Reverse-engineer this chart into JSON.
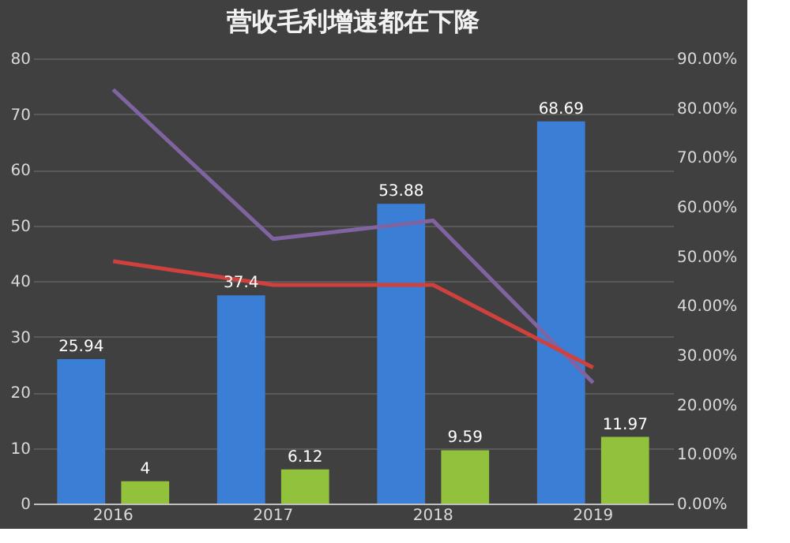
{
  "chart_data": {
    "type": "bar",
    "title": "营收毛利增速都在下降",
    "categories": [
      "2016",
      "2017",
      "2018",
      "2019"
    ],
    "series": [
      {
        "color": "#3a7fd5",
        "values": [
          25.94,
          37.4,
          53.88,
          68.69
        ],
        "value_labels": [
          "25.94",
          "37.4",
          "53.88",
          "68.69"
        ]
      },
      {
        "color": "#92c13c",
        "values": [
          4,
          6.12,
          9.59,
          11.97
        ],
        "value_labels": [
          "4",
          "6.12",
          "9.59",
          "11.97"
        ]
      },
      {
        "type": "line",
        "axis": "y2",
        "color": "#8064a2",
        "values": [
          83.7,
          53.5,
          57.2,
          24.4
        ]
      },
      {
        "type": "line",
        "axis": "y2",
        "color": "#d0413e",
        "values": [
          49.0,
          44.2,
          44.2,
          27.5
        ]
      }
    ],
    "ylim": [
      0,
      80
    ],
    "yticks": [
      0,
      10,
      20,
      30,
      40,
      50,
      60,
      70,
      80
    ],
    "y2lim": [
      0,
      90
    ],
    "y2ticks": [
      {
        "value": 0,
        "label": "0.00%"
      },
      {
        "value": 10,
        "label": "10.00%"
      },
      {
        "value": 20,
        "label": "20.00%"
      },
      {
        "value": 30,
        "label": "30.00%"
      },
      {
        "value": 40,
        "label": "40.00%"
      },
      {
        "value": 50,
        "label": "50.00%"
      },
      {
        "value": 60,
        "label": "60.00%"
      },
      {
        "value": 70,
        "label": "70.00%"
      },
      {
        "value": 80,
        "label": "80.00%"
      },
      {
        "value": 90,
        "label": "90.00%"
      }
    ],
    "grid": "y",
    "legend": false,
    "marker": "none",
    "line_style": "solid"
  }
}
